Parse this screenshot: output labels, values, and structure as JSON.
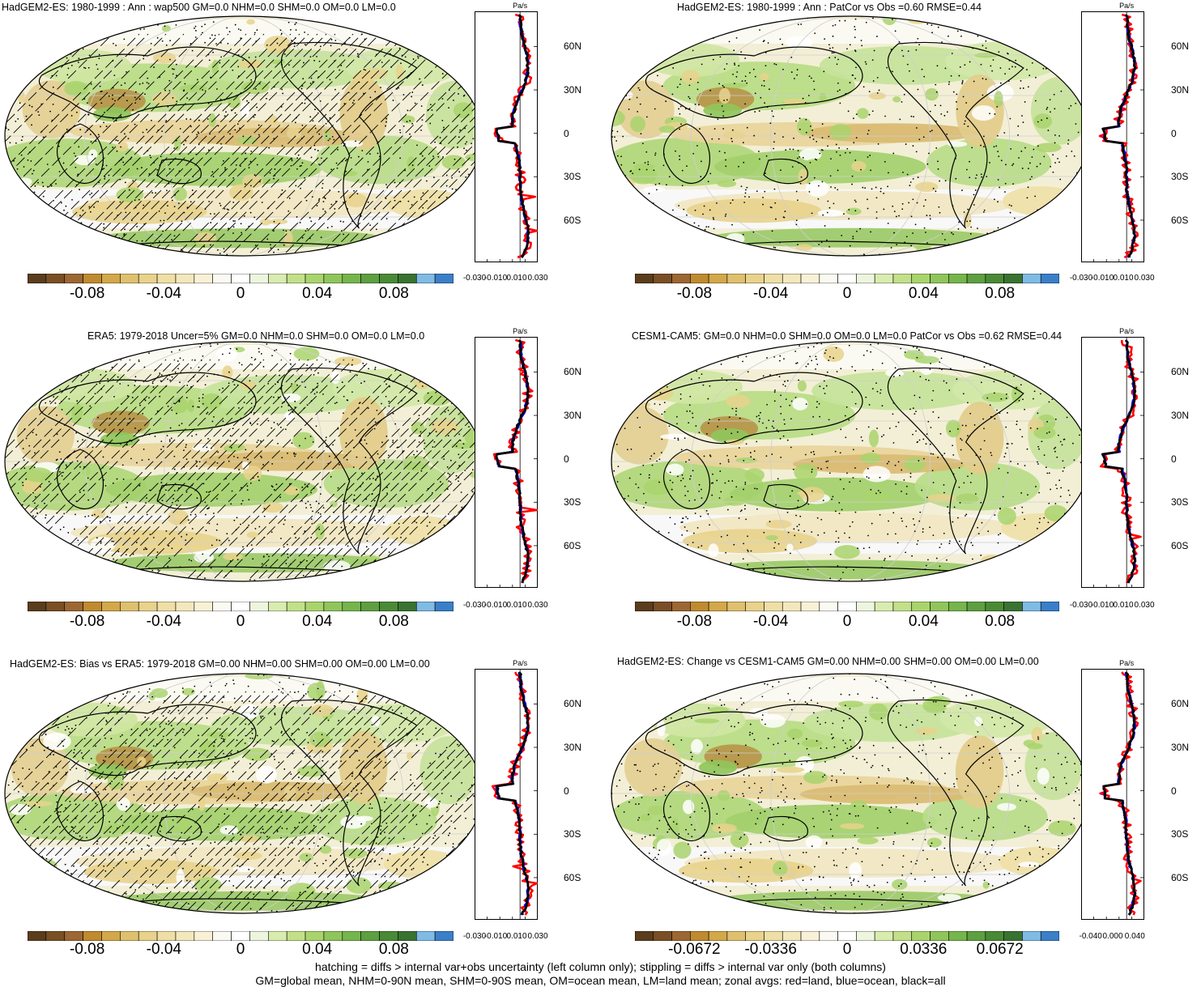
{
  "panels": [
    {
      "title": "HadGEM2-ES: 1980-1999 : Ann : wap500 GM=0.0 NHM=0.0 SHM=0.0 OM=0.0 LM=0.0",
      "hatch": true,
      "cb": [
        "-0.08",
        "-0.04",
        "0",
        "0.04",
        "0.08"
      ],
      "zx": [
        "-0.030",
        "-0.010",
        "0.010",
        "0.030"
      ]
    },
    {
      "title": "HadGEM2-ES: 1980-1999 : Ann : PatCor vs Obs =0.60 RMSE=0.44",
      "hatch": false,
      "cb": [
        "-0.08",
        "-0.04",
        "0",
        "0.04",
        "0.08"
      ],
      "zx": [
        "-0.030",
        "-0.010",
        "0.010",
        "0.030"
      ]
    },
    {
      "title": "ERA5: 1979-2018 Uncer=5% GM=0.0 NHM=0.0 SHM=0.0 OM=0.0 LM=0.0",
      "hatch": true,
      "cb": [
        "-0.08",
        "-0.04",
        "0",
        "0.04",
        "0.08"
      ],
      "zx": [
        "-0.030",
        "-0.010",
        "0.010",
        "0.030"
      ]
    },
    {
      "title": "CESM1-CAM5: GM=0.0 NHM=0.0 SHM=0.0 OM=0.0 LM=0.0 PatCor vs Obs =0.62 RMSE=0.44",
      "hatch": false,
      "cb": [
        "-0.08",
        "-0.04",
        "0",
        "0.04",
        "0.08"
      ],
      "zx": [
        "-0.030",
        "-0.010",
        "0.010",
        "0.030"
      ]
    },
    {
      "title": "HadGEM2-ES: Bias vs ERA5: 1979-2018 GM=0.00 NHM=0.00 SHM=0.00 OM=0.00 LM=0.00",
      "hatch": true,
      "cb": [
        "-0.08",
        "-0.04",
        "0",
        "0.04",
        "0.08"
      ],
      "zx": [
        "-0.030",
        "-0.010",
        "0.010",
        "0.030"
      ]
    },
    {
      "title": "HadGEM2-ES: Change vs CESM1-CAM5 GM=0.00 NHM=0.00 SHM=0.00 OM=0.00 LM=0.00",
      "hatch": false,
      "cb": [
        "-0.0672",
        "-0.0336",
        "0",
        "0.0336",
        "0.0672"
      ],
      "zx": [
        "-0.040",
        "0.000",
        "0.040"
      ]
    }
  ],
  "zonal_units": "Pa/s",
  "lat_ticks": [
    "60N",
    "30N",
    "0",
    "30S",
    "60S"
  ],
  "colorbar_colors": [
    "#5a3d1c",
    "#7a4f25",
    "#9c6733",
    "#c08a2f",
    "#d3a84a",
    "#dfc06e",
    "#e8d28c",
    "#efdfa6",
    "#f3e8bd",
    "#f8f1d6",
    "#fbfaf2",
    "#ffffff",
    "#eef5de",
    "#d9ecb0",
    "#c2e08a",
    "#a9d46d",
    "#8fc55b",
    "#76b54c",
    "#5e9f41",
    "#4a8a36",
    "#3a7331",
    "#7fbbe5",
    "#3a7fc8"
  ],
  "line_colors": {
    "land": "#ff0000",
    "ocean": "#0000ff",
    "all": "#000000"
  },
  "footnote": [
    "hatching = diffs > internal var+obs uncertainty (left column only); stippling = diffs > internal var only (both columns)",
    "GM=global mean, NHM=0-90N mean, SHM=0-90S mean, OM=ocean mean, LM=land mean; zonal avgs: red=land, blue=ocean, black=all"
  ],
  "chart_data": [
    {
      "type": "heatmap",
      "title": "HadGEM2-ES: 1980-1999 : Ann : wap500 GM=0.0 NHM=0.0 SHM=0.0 OM=0.0 LM=0.0",
      "colorbar_ticks": [
        -0.08,
        -0.04,
        0,
        0.04,
        0.08
      ],
      "zonal_xticks": [
        -0.03,
        -0.01,
        0.01,
        0.03
      ]
    },
    {
      "type": "heatmap",
      "title": "HadGEM2-ES: 1980-1999 : Ann : PatCor vs Obs =0.60 RMSE=0.44",
      "colorbar_ticks": [
        -0.08,
        -0.04,
        0,
        0.04,
        0.08
      ],
      "zonal_xticks": [
        -0.03,
        -0.01,
        0.01,
        0.03
      ]
    },
    {
      "type": "heatmap",
      "title": "ERA5: 1979-2018 Uncer=5% GM=0.0 NHM=0.0 SHM=0.0 OM=0.0 LM=0.0",
      "colorbar_ticks": [
        -0.08,
        -0.04,
        0,
        0.04,
        0.08
      ],
      "zonal_xticks": [
        -0.03,
        -0.01,
        0.01,
        0.03
      ]
    },
    {
      "type": "heatmap",
      "title": "CESM1-CAM5: GM=0.0 NHM=0.0 SHM=0.0 OM=0.0 LM=0.0 PatCor vs Obs =0.62 RMSE=0.44",
      "colorbar_ticks": [
        -0.08,
        -0.04,
        0,
        0.04,
        0.08
      ],
      "zonal_xticks": [
        -0.03,
        -0.01,
        0.01,
        0.03
      ]
    },
    {
      "type": "heatmap",
      "title": "HadGEM2-ES: Bias vs ERA5: 1979-2018 GM=0.00 NHM=0.00 SHM=0.00 OM=0.00 LM=0.00",
      "colorbar_ticks": [
        -0.08,
        -0.04,
        0,
        0.04,
        0.08
      ],
      "zonal_xticks": [
        -0.03,
        -0.01,
        0.01,
        0.03
      ]
    },
    {
      "type": "heatmap",
      "title": "HadGEM2-ES: Change vs CESM1-CAM5 GM=0.00 NHM=0.00 SHM=0.00 OM=0.00 LM=0.00",
      "colorbar_ticks": [
        -0.0672,
        -0.0336,
        0,
        0.0336,
        0.0672
      ],
      "zonal_xticks": [
        -0.04,
        0,
        0.04
      ]
    }
  ]
}
